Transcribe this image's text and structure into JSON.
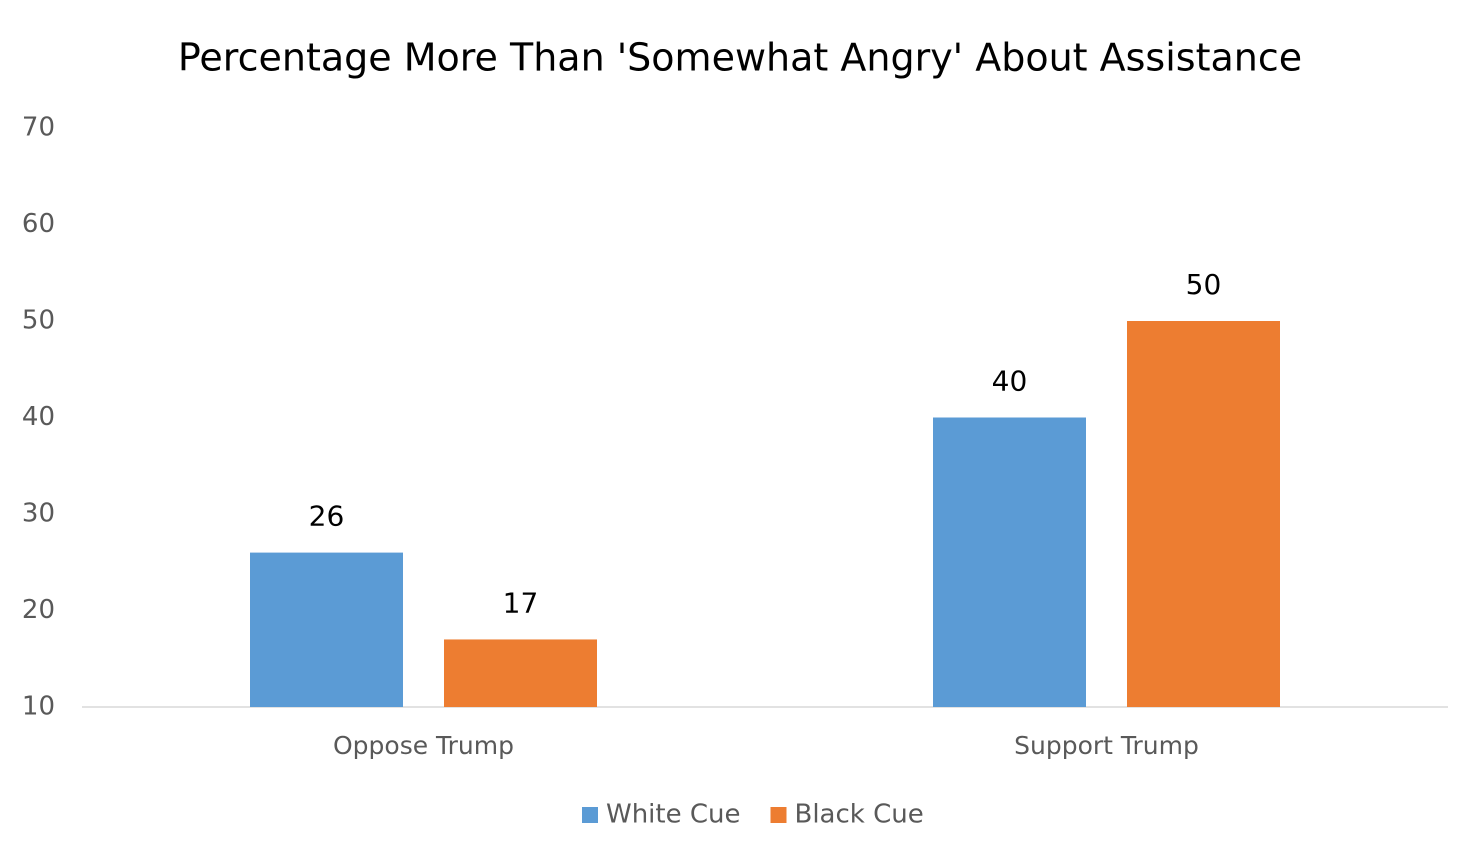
{
  "chart_data": {
    "type": "bar",
    "title": "Percentage More Than 'Somewhat Angry' About Assistance",
    "categories": [
      "Oppose Trump",
      "Support Trump"
    ],
    "series": [
      {
        "name": "White Cue",
        "color": "#5b9bd5",
        "values": [
          26,
          40
        ]
      },
      {
        "name": "Black Cue",
        "color": "#ed7d31",
        "values": [
          17,
          50
        ]
      }
    ],
    "ylim": [
      10,
      70
    ],
    "yticks": [
      10,
      20,
      30,
      40,
      50,
      60,
      70
    ],
    "grid": false,
    "legend": "bottom"
  }
}
